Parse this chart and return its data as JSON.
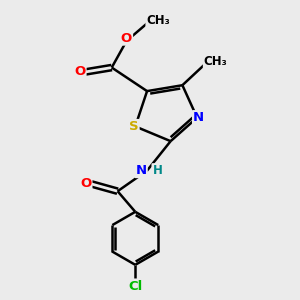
{
  "background_color": "#ebebeb",
  "bond_color": "#000000",
  "atom_colors": {
    "O": "#ff0000",
    "N": "#0000ff",
    "S": "#ccaa00",
    "Cl": "#00bb00",
    "C": "#000000",
    "H": "#008888"
  },
  "figsize": [
    3.0,
    3.0
  ],
  "dpi": 100,
  "lw": 1.8
}
